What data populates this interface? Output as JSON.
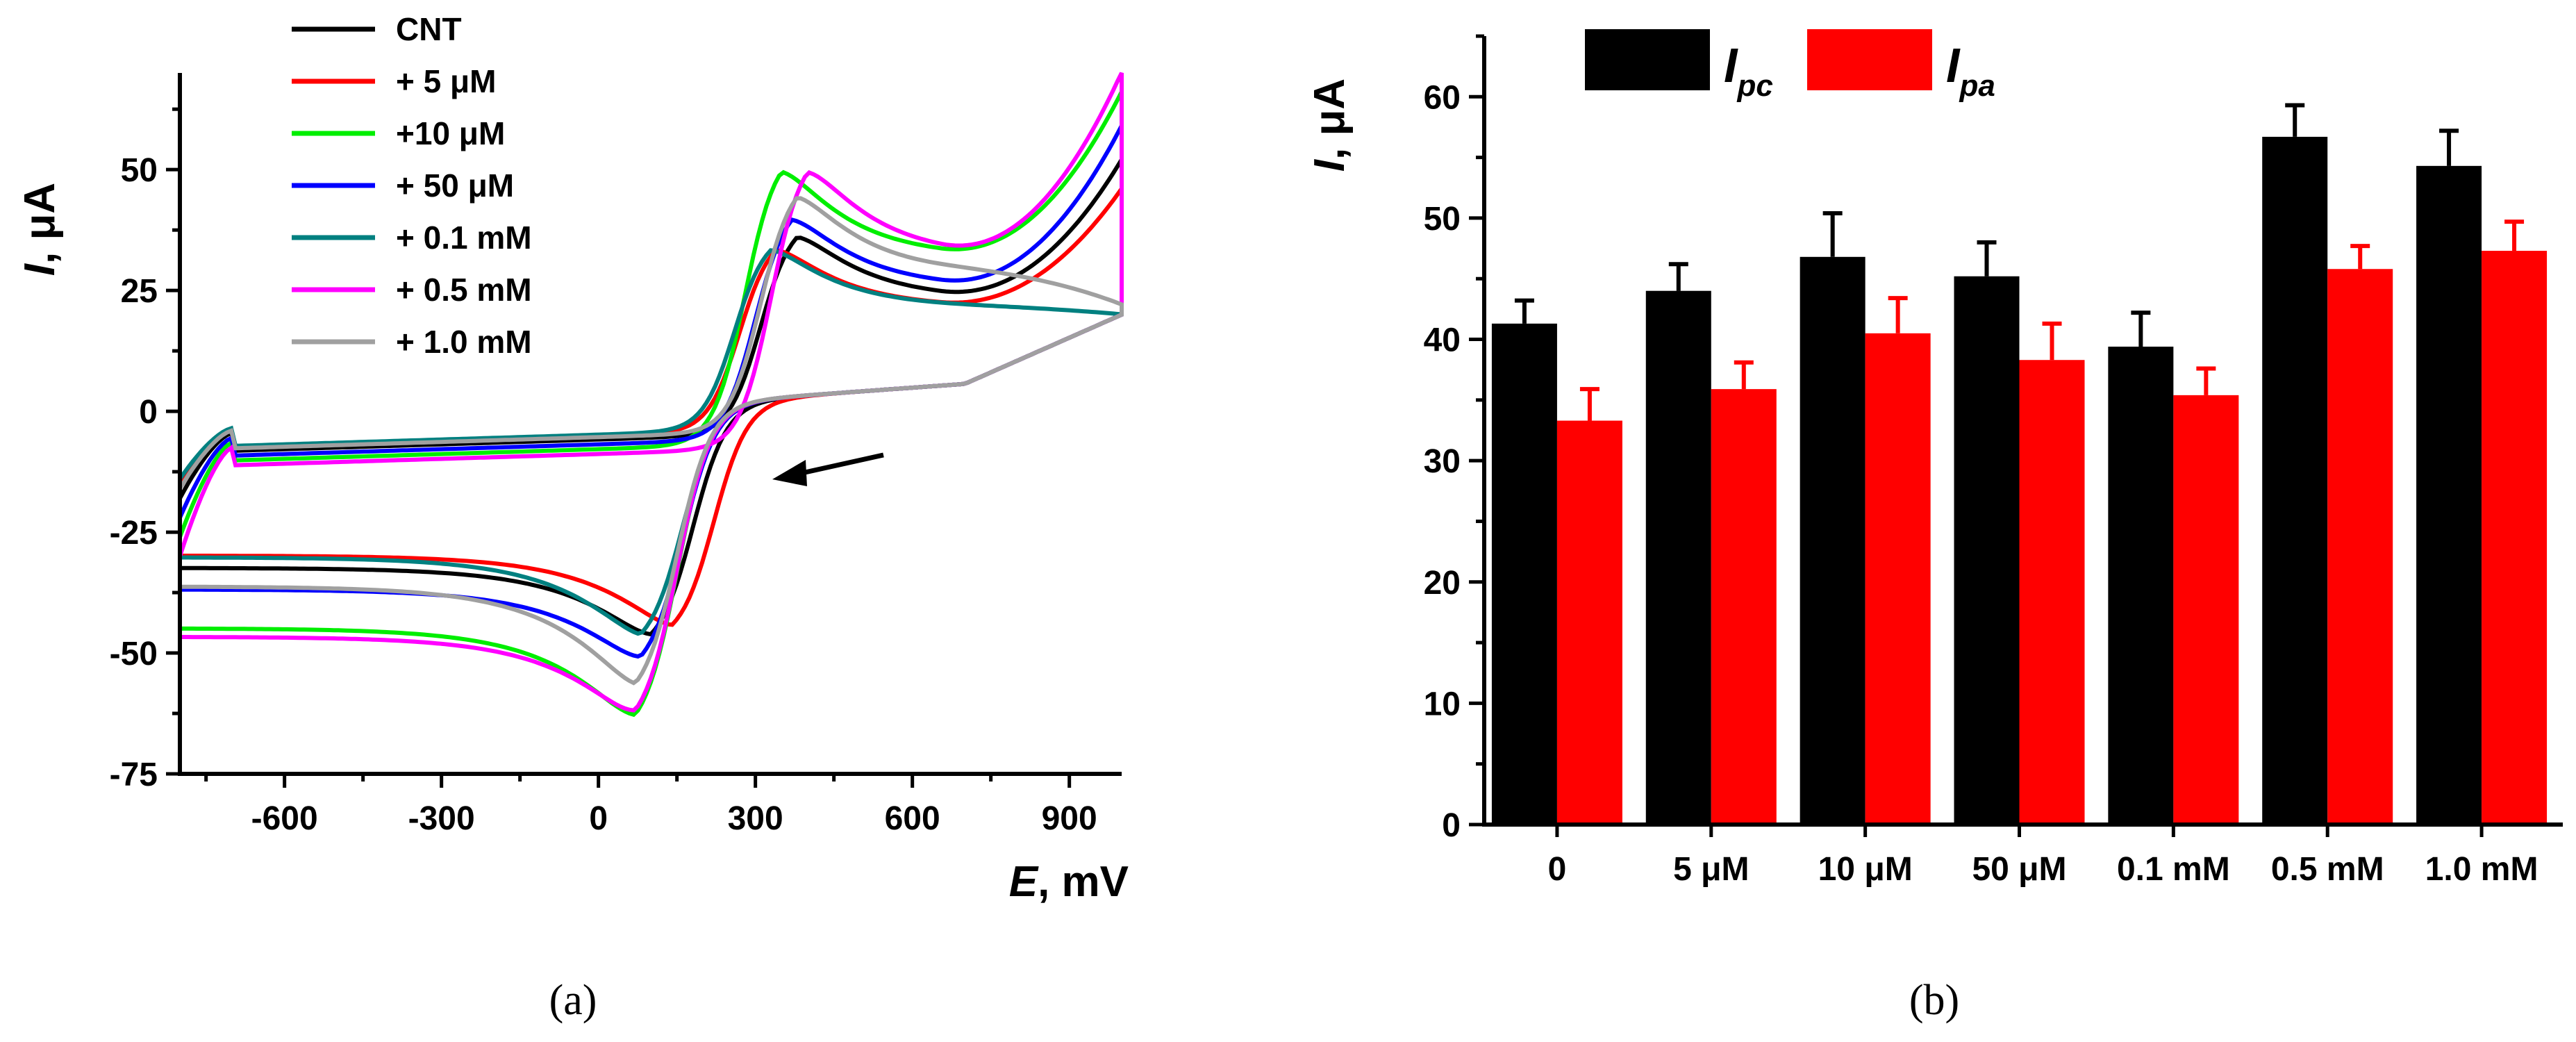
{
  "chart_data": [
    {
      "type": "line",
      "panel_label": "(a)",
      "ylabel_var": "I",
      "ylabel_unit": ", μA",
      "xlabel_var": "E",
      "xlabel_unit": ", mV",
      "xlim": [
        -800,
        1000
      ],
      "ylim": [
        -75,
        70
      ],
      "xticks": [
        -600,
        -300,
        0,
        300,
        600,
        900
      ],
      "yticks": [
        -75,
        -50,
        -25,
        0,
        25,
        50
      ],
      "legend_position": "top-left",
      "annotation": "arrow indicating scan direction (negative sweep)",
      "series": [
        {
          "name": "CNT",
          "color": "#000000",
          "ox_peak_E": 380,
          "ox_peak_I": 40,
          "red_peak_E": 100,
          "red_peak_I": -50,
          "end_upper_I": 52,
          "start_I": -18
        },
        {
          "name": "+ 5 μM",
          "color": "#ff0000",
          "ox_peak_E": 340,
          "ox_peak_I": 37,
          "red_peak_E": 140,
          "red_peak_I": -48,
          "end_upper_I": 46,
          "start_I": -15
        },
        {
          "name": "+10 μM",
          "color": "#00ee00",
          "ox_peak_E": 350,
          "ox_peak_I": 55,
          "red_peak_E": 70,
          "red_peak_I": -68,
          "end_upper_I": 66,
          "start_I": -26
        },
        {
          "name": "+ 50 μM",
          "color": "#0000ff",
          "ox_peak_E": 370,
          "ox_peak_I": 44,
          "red_peak_E": 80,
          "red_peak_I": -55,
          "end_upper_I": 59,
          "start_I": -22
        },
        {
          "name": "+ 0.1 mM",
          "color": "#008080",
          "ox_peak_E": 330,
          "ox_peak_I": 37,
          "red_peak_E": 80,
          "red_peak_I": -50,
          "end_upper_I": 20,
          "start_I": -14
        },
        {
          "name": "+ 0.5 mM",
          "color": "#ff00ff",
          "ox_peak_E": 400,
          "ox_peak_I": 55,
          "red_peak_E": 70,
          "red_peak_I": -67,
          "end_upper_I": 70,
          "start_I": -30
        },
        {
          "name": "+ 1.0 mM",
          "color": "#a0a0a0",
          "ox_peak_E": 380,
          "ox_peak_I": 49,
          "red_peak_E": 70,
          "red_peak_I": -61,
          "end_upper_I": 22,
          "start_I": -16
        }
      ]
    },
    {
      "type": "bar",
      "panel_label": "(b)",
      "ylabel_var": "I",
      "ylabel_unit": ", μA",
      "ylim": [
        0,
        65
      ],
      "yticks": [
        0,
        10,
        20,
        30,
        40,
        50,
        60
      ],
      "legend_position": "top-left",
      "categories": [
        "0",
        "5 μM",
        "10 μM",
        "50 μM",
        "0.1 mM",
        "0.5 mM",
        "1.0 mM"
      ],
      "series": [
        {
          "name": "I",
          "sub": "pc",
          "color": "#000000",
          "values": [
            41.3,
            44.0,
            46.8,
            45.2,
            39.4,
            56.7,
            54.3
          ],
          "errors": [
            1.9,
            2.2,
            3.6,
            2.8,
            2.8,
            2.6,
            2.9
          ]
        },
        {
          "name": "I",
          "sub": "pa",
          "color": "#ff0000",
          "values": [
            33.3,
            35.9,
            40.5,
            38.3,
            35.4,
            45.8,
            47.3
          ],
          "errors": [
            2.6,
            2.2,
            2.9,
            3.0,
            2.2,
            1.9,
            2.4
          ]
        }
      ]
    }
  ]
}
